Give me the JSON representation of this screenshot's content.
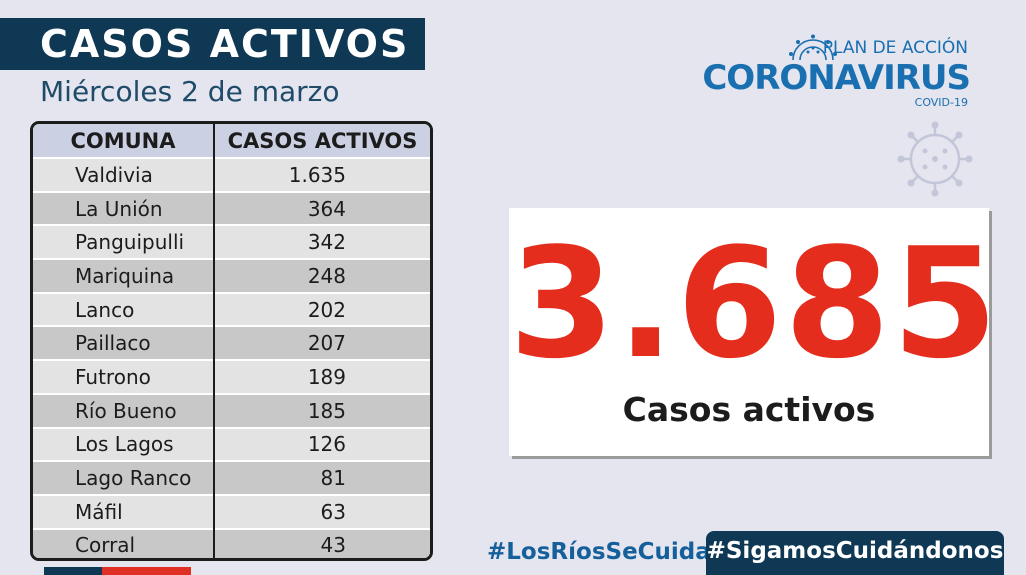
{
  "header": {
    "title": "CASOS ACTIVOS",
    "date": "Miércoles 2 de marzo"
  },
  "table": {
    "columns": [
      "COMUNA",
      "CASOS ACTIVOS"
    ],
    "rows": [
      {
        "comuna": "Valdivia",
        "casos": "1.635"
      },
      {
        "comuna": "La Unión",
        "casos": "364"
      },
      {
        "comuna": "Panguipulli",
        "casos": "342"
      },
      {
        "comuna": "Mariquina",
        "casos": "248"
      },
      {
        "comuna": "Lanco",
        "casos": "202"
      },
      {
        "comuna": "Paillaco",
        "casos": "207"
      },
      {
        "comuna": "Futrono",
        "casos": "189"
      },
      {
        "comuna": "Río Bueno",
        "casos": "185"
      },
      {
        "comuna": "Los Lagos",
        "casos": "126"
      },
      {
        "comuna": "Lago Ranco",
        "casos": "81"
      },
      {
        "comuna": "Máfil",
        "casos": "63"
      },
      {
        "comuna": "Corral",
        "casos": "43"
      }
    ]
  },
  "logo": {
    "line1": "PLAN DE ACCIÓN",
    "line2": "CORONAVIRUS",
    "line3": "COVID-19",
    "icon": "virus-icon"
  },
  "total": {
    "value": "3.685",
    "label": "Casos activos"
  },
  "hashtags": {
    "left": "#LosRíosSeCuida",
    "right": "#SigamosCuidándonos"
  },
  "colors": {
    "navy": "#0f3854",
    "blue": "#1a6fb0",
    "red": "#e42d1c",
    "background": "#e4e5ef"
  }
}
